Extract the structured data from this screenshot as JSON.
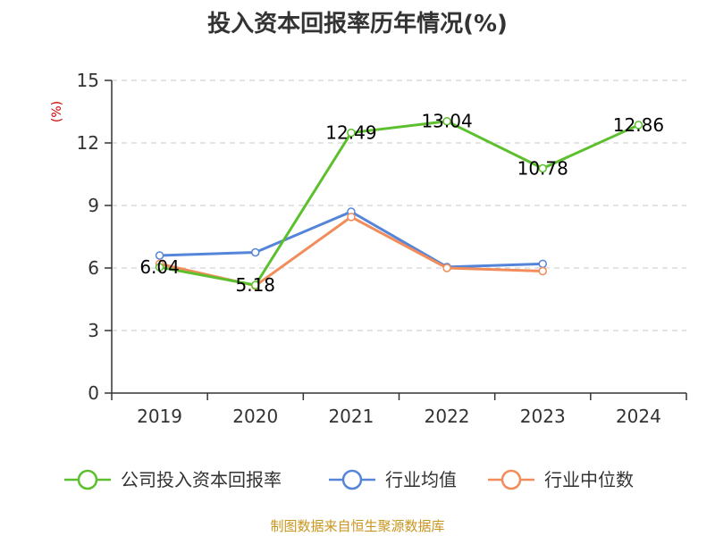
{
  "chart_data": {
    "type": "line",
    "title": "投入资本回报率历年情况(%)",
    "ylabel": "(%)",
    "xlabel": "",
    "categories": [
      "2019",
      "2020",
      "2021",
      "2022",
      "2023",
      "2024"
    ],
    "ylim": [
      0,
      15
    ],
    "yticks": [
      0,
      3,
      6,
      9,
      12,
      15
    ],
    "grid": "horizontal-dashed",
    "legend_position": "bottom",
    "series": [
      {
        "name": "公司投入资本回报率",
        "color": "#5cc02e",
        "values": [
          6.04,
          5.18,
          12.49,
          13.04,
          10.78,
          12.86
        ],
        "labels": [
          "6.04",
          "5.18",
          "12.49",
          "13.04",
          "10.78",
          "12.86"
        ]
      },
      {
        "name": "行业均值",
        "color": "#5585d8",
        "values": [
          6.6,
          6.75,
          8.7,
          6.05,
          6.2,
          null
        ]
      },
      {
        "name": "行业中位数",
        "color": "#f28c5a",
        "values": [
          6.2,
          5.15,
          8.45,
          6.0,
          5.85,
          null
        ]
      }
    ]
  },
  "source": "制图数据来自恒生聚源数据库"
}
